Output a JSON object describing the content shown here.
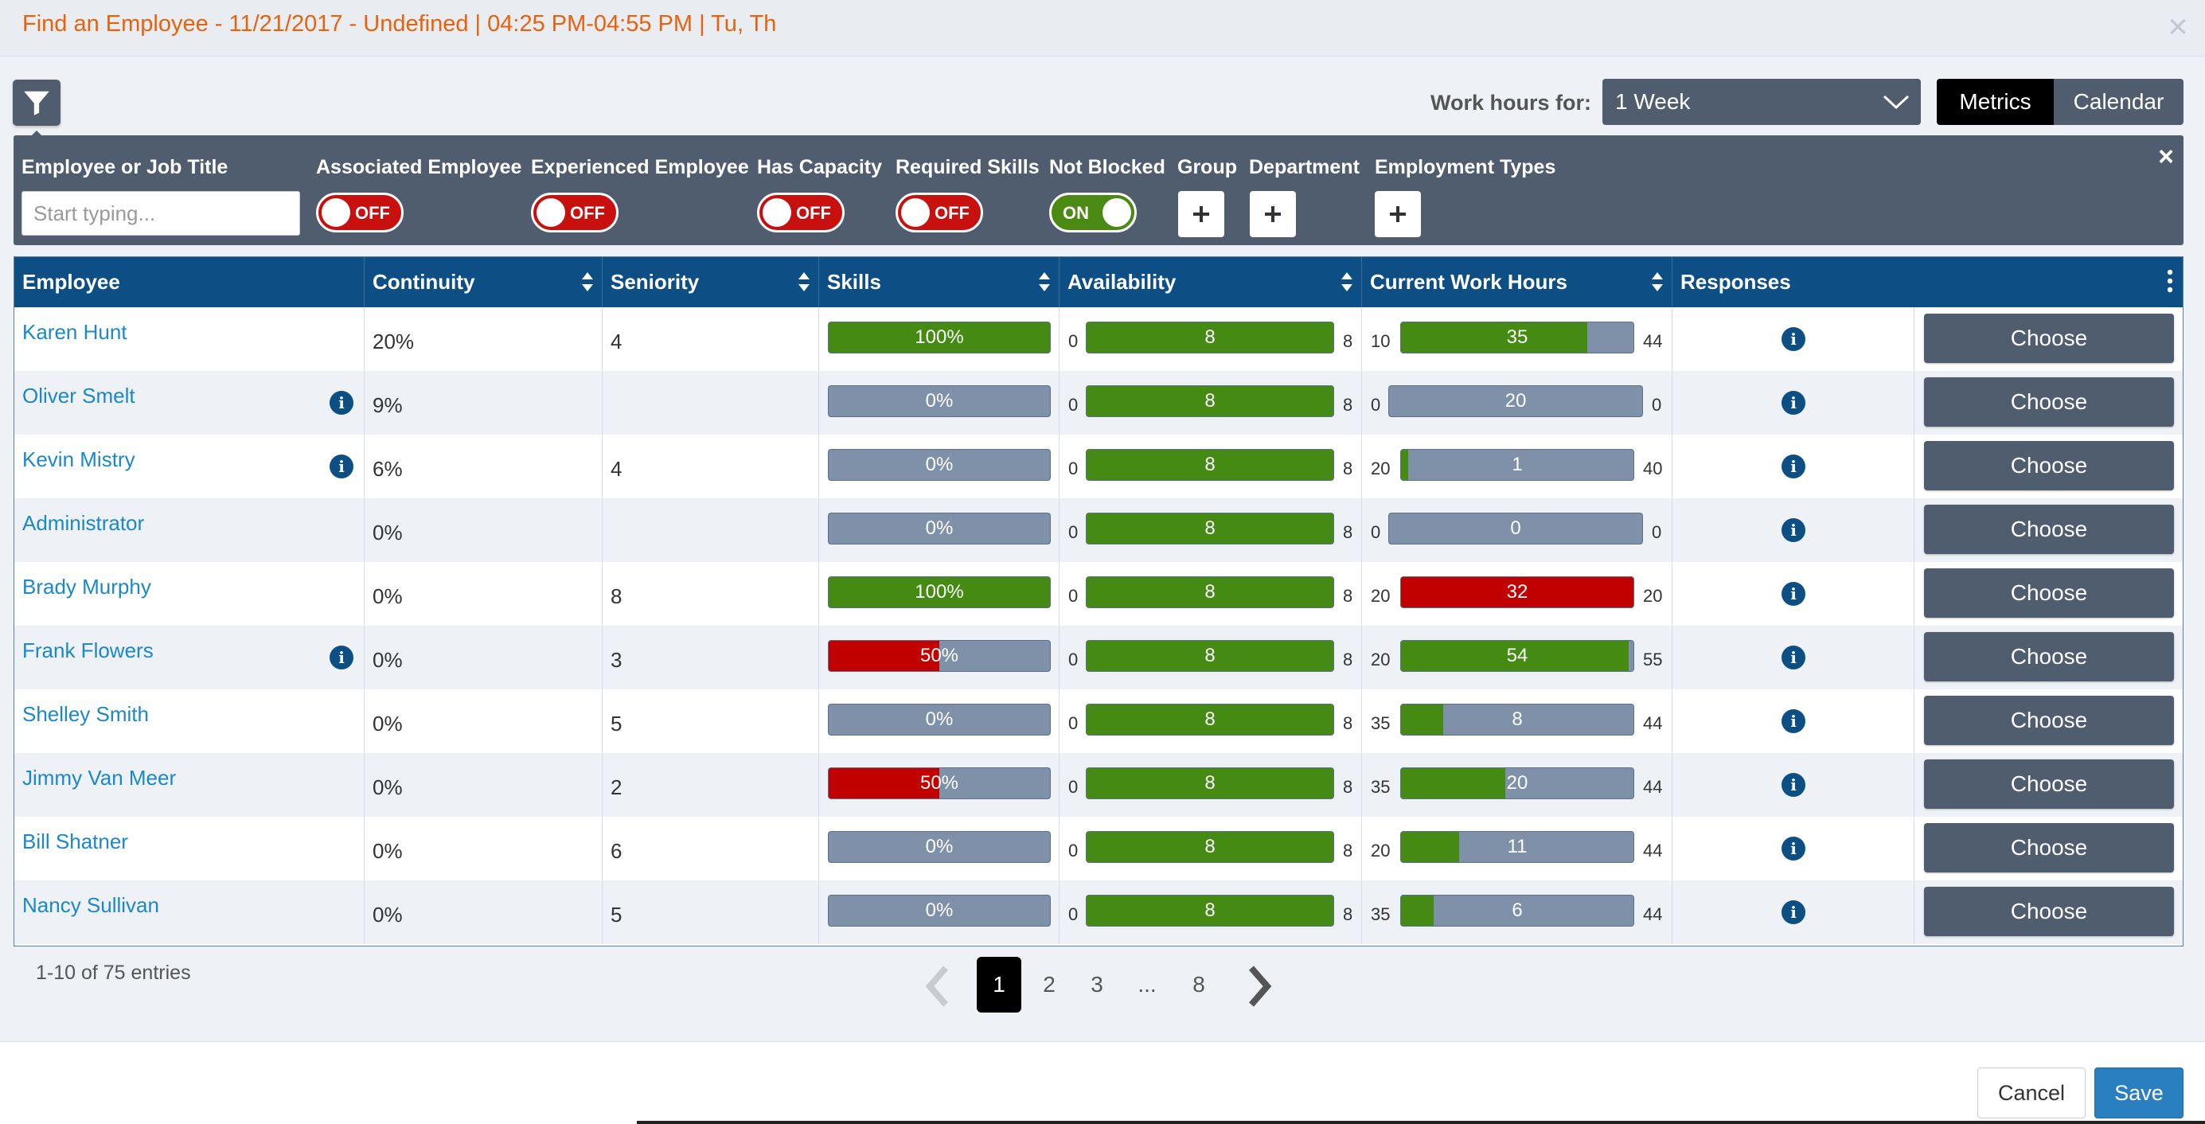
{
  "window": {
    "title": "Find an Employee - 11/21/2017 - Undefined | 04:25 PM-04:55 PM | Tu, Th",
    "close_glyph": "×"
  },
  "toolbar": {
    "filter_icon": "filter-icon",
    "work_hours_label": "Work hours for:",
    "work_hours_value": "1 Week",
    "view_options": [
      "Metrics",
      "Calendar"
    ],
    "active_view": "Metrics"
  },
  "filters": {
    "close_glyph": "×",
    "search_label": "Employee or Job Title",
    "search_placeholder": "Start typing...",
    "search_value": "",
    "toggles": [
      {
        "label": "Associated Employee",
        "state": "OFF"
      },
      {
        "label": "Experienced Employee",
        "state": "OFF"
      },
      {
        "label": "Has Capacity",
        "state": "OFF"
      },
      {
        "label": "Required Skills",
        "state": "OFF"
      },
      {
        "label": "Not Blocked",
        "state": "ON"
      }
    ],
    "adders": [
      {
        "label": "Group"
      },
      {
        "label": "Department"
      },
      {
        "label": "Employment Types"
      }
    ]
  },
  "table": {
    "columns": [
      "Employee",
      "Continuity",
      "Seniority",
      "Skills",
      "Availability",
      "Current Work Hours",
      "Responses"
    ],
    "choose_label": "Choose",
    "info_glyph": "i",
    "rows": [
      {
        "name": "Karen Hunt",
        "info": false,
        "continuity": "20%",
        "seniority": "4",
        "skills": {
          "label": "100%",
          "pct": 1.0,
          "color": "green"
        },
        "avail": {
          "min": "0",
          "val": "8",
          "max": "8",
          "pct": 1.0
        },
        "hours": {
          "min": "10",
          "val": "35",
          "max": "44",
          "pct": 0.8,
          "color": "green"
        }
      },
      {
        "name": "Oliver Smelt",
        "info": true,
        "continuity": "9%",
        "seniority": "",
        "skills": {
          "label": "0%",
          "pct": 0,
          "color": "green"
        },
        "avail": {
          "min": "0",
          "val": "8",
          "max": "8",
          "pct": 1.0
        },
        "hours": {
          "min": "0",
          "val": "20",
          "max": "0",
          "pct": 0,
          "color": "green"
        }
      },
      {
        "name": "Kevin Mistry",
        "info": true,
        "continuity": "6%",
        "seniority": "4",
        "skills": {
          "label": "0%",
          "pct": 0,
          "color": "green"
        },
        "avail": {
          "min": "0",
          "val": "8",
          "max": "8",
          "pct": 1.0
        },
        "hours": {
          "min": "20",
          "val": "1",
          "max": "40",
          "pct": 0.03,
          "color": "green"
        }
      },
      {
        "name": "Administrator",
        "info": false,
        "continuity": "0%",
        "seniority": "",
        "skills": {
          "label": "0%",
          "pct": 0,
          "color": "green"
        },
        "avail": {
          "min": "0",
          "val": "8",
          "max": "8",
          "pct": 1.0
        },
        "hours": {
          "min": "0",
          "val": "0",
          "max": "0",
          "pct": 0,
          "color": "green"
        }
      },
      {
        "name": "Brady Murphy",
        "info": false,
        "continuity": "0%",
        "seniority": "8",
        "skills": {
          "label": "100%",
          "pct": 1.0,
          "color": "green"
        },
        "avail": {
          "min": "0",
          "val": "8",
          "max": "8",
          "pct": 1.0
        },
        "hours": {
          "min": "20",
          "val": "32",
          "max": "20",
          "pct": 1.0,
          "color": "red"
        }
      },
      {
        "name": "Frank Flowers",
        "info": true,
        "continuity": "0%",
        "seniority": "3",
        "skills": {
          "label": "50%",
          "pct": 0.5,
          "color": "red"
        },
        "avail": {
          "min": "0",
          "val": "8",
          "max": "8",
          "pct": 1.0
        },
        "hours": {
          "min": "20",
          "val": "54",
          "max": "55",
          "pct": 0.98,
          "color": "green"
        }
      },
      {
        "name": "Shelley Smith",
        "info": false,
        "continuity": "0%",
        "seniority": "5",
        "skills": {
          "label": "0%",
          "pct": 0,
          "color": "green"
        },
        "avail": {
          "min": "0",
          "val": "8",
          "max": "8",
          "pct": 1.0
        },
        "hours": {
          "min": "35",
          "val": "8",
          "max": "44",
          "pct": 0.18,
          "color": "green"
        }
      },
      {
        "name": "Jimmy Van Meer",
        "info": false,
        "continuity": "0%",
        "seniority": "2",
        "skills": {
          "label": "50%",
          "pct": 0.5,
          "color": "red"
        },
        "avail": {
          "min": "0",
          "val": "8",
          "max": "8",
          "pct": 1.0
        },
        "hours": {
          "min": "35",
          "val": "20",
          "max": "44",
          "pct": 0.45,
          "color": "green"
        }
      },
      {
        "name": "Bill Shatner",
        "info": false,
        "continuity": "0%",
        "seniority": "6",
        "skills": {
          "label": "0%",
          "pct": 0,
          "color": "green"
        },
        "avail": {
          "min": "0",
          "val": "8",
          "max": "8",
          "pct": 1.0
        },
        "hours": {
          "min": "20",
          "val": "11",
          "max": "44",
          "pct": 0.25,
          "color": "green"
        }
      },
      {
        "name": "Nancy Sullivan",
        "info": false,
        "continuity": "0%",
        "seniority": "5",
        "skills": {
          "label": "0%",
          "pct": 0,
          "color": "green"
        },
        "avail": {
          "min": "0",
          "val": "8",
          "max": "8",
          "pct": 1.0
        },
        "hours": {
          "min": "35",
          "val": "6",
          "max": "44",
          "pct": 0.14,
          "color": "green"
        }
      }
    ]
  },
  "pagination": {
    "summary": "1-10 of 75 entries",
    "pages": [
      "1",
      "2",
      "3",
      "...",
      "8"
    ],
    "current": "1"
  },
  "footer": {
    "cancel_label": "Cancel",
    "save_label": "Save"
  },
  "colors": {
    "green": "#448a13",
    "red": "#c10000",
    "bar_bg": "#7e91a9",
    "header": "#0d4f84",
    "title": "#e8620d",
    "accent": "#2a7fc0"
  }
}
